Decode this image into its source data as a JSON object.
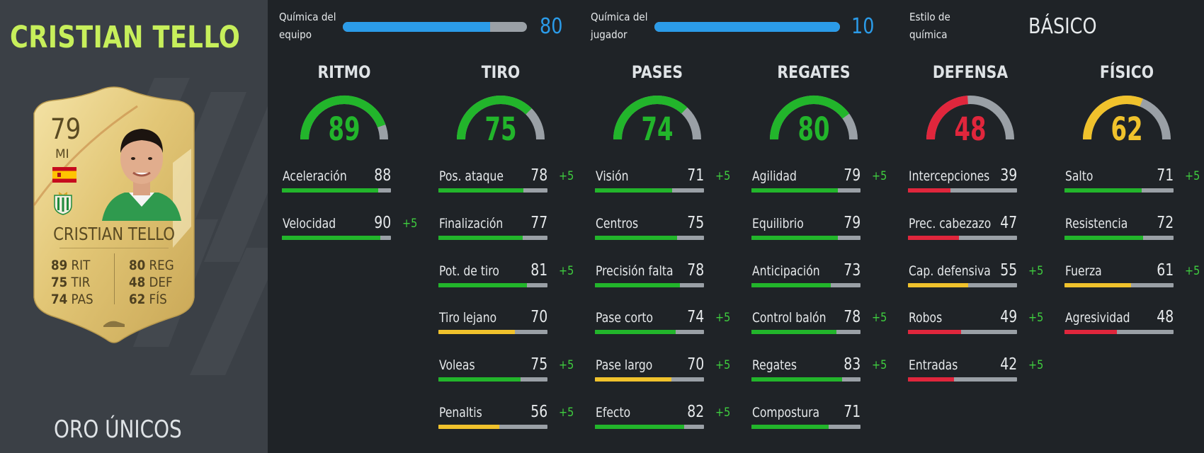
{
  "player": {
    "name": "CRISTIAN TELLO",
    "card_type": "ORO ÚNICOS"
  },
  "card": {
    "rating": "79",
    "position": "MI",
    "name": "CRISTIAN TELLO",
    "stats_left": [
      {
        "value": "89",
        "label": "RIT"
      },
      {
        "value": "75",
        "label": "TIR"
      },
      {
        "value": "74",
        "label": "PAS"
      }
    ],
    "stats_right": [
      {
        "value": "80",
        "label": "REG"
      },
      {
        "value": "48",
        "label": "DEF"
      },
      {
        "value": "62",
        "label": "FÍS"
      }
    ],
    "flag_icon": "spain-flag-icon",
    "club_icon": "real-betis-badge-icon"
  },
  "chemistry": {
    "team": {
      "label_line1": "Química del",
      "label_line2": "equipo",
      "value": "80",
      "level": 0.8
    },
    "player": {
      "label_line1": "Química del",
      "label_line2": "jugador",
      "value": "10",
      "level": 1.0
    },
    "style": {
      "label_line1": "Estilo de",
      "label_line2": "química",
      "value": "BÁSICO"
    }
  },
  "colors": {
    "green": "#22b52b",
    "yellow": "#f0c22c",
    "red": "#e0263c",
    "blue": "#2b9be8",
    "track": "#9aa0a6",
    "title_green": "#c7ef5b"
  },
  "categories": [
    {
      "title": "RITMO",
      "value": "89",
      "color": "#22b52b",
      "attributes": [
        {
          "name": "Aceleración",
          "value": "88",
          "bonus": "",
          "color": "#22b52b"
        },
        {
          "name": "Velocidad",
          "value": "90",
          "bonus": "+5",
          "color": "#22b52b"
        }
      ]
    },
    {
      "title": "TIRO",
      "value": "75",
      "color": "#22b52b",
      "attributes": [
        {
          "name": "Pos. ataque",
          "value": "78",
          "bonus": "+5",
          "color": "#22b52b"
        },
        {
          "name": "Finalización",
          "value": "77",
          "bonus": "",
          "color": "#22b52b"
        },
        {
          "name": "Pot. de tiro",
          "value": "81",
          "bonus": "+5",
          "color": "#22b52b"
        },
        {
          "name": "Tiro lejano",
          "value": "70",
          "bonus": "",
          "color": "#f0c22c"
        },
        {
          "name": "Voleas",
          "value": "75",
          "bonus": "+5",
          "color": "#22b52b"
        },
        {
          "name": "Penaltis",
          "value": "56",
          "bonus": "+5",
          "color": "#f0c22c"
        }
      ]
    },
    {
      "title": "PASES",
      "value": "74",
      "color": "#22b52b",
      "attributes": [
        {
          "name": "Visión",
          "value": "71",
          "bonus": "+5",
          "color": "#22b52b"
        },
        {
          "name": "Centros",
          "value": "75",
          "bonus": "",
          "color": "#22b52b"
        },
        {
          "name": "Precisión falta",
          "value": "78",
          "bonus": "",
          "color": "#22b52b"
        },
        {
          "name": "Pase corto",
          "value": "74",
          "bonus": "+5",
          "color": "#22b52b"
        },
        {
          "name": "Pase largo",
          "value": "70",
          "bonus": "+5",
          "color": "#f0c22c"
        },
        {
          "name": "Efecto",
          "value": "82",
          "bonus": "+5",
          "color": "#22b52b"
        }
      ]
    },
    {
      "title": "REGATES",
      "value": "80",
      "color": "#22b52b",
      "attributes": [
        {
          "name": "Agilidad",
          "value": "79",
          "bonus": "+5",
          "color": "#22b52b"
        },
        {
          "name": "Equilibrio",
          "value": "79",
          "bonus": "",
          "color": "#22b52b"
        },
        {
          "name": "Anticipación",
          "value": "73",
          "bonus": "",
          "color": "#22b52b"
        },
        {
          "name": "Control balón",
          "value": "78",
          "bonus": "+5",
          "color": "#22b52b"
        },
        {
          "name": "Regates",
          "value": "83",
          "bonus": "+5",
          "color": "#22b52b"
        },
        {
          "name": "Compostura",
          "value": "71",
          "bonus": "",
          "color": "#22b52b"
        }
      ]
    },
    {
      "title": "DEFENSA",
      "value": "48",
      "color": "#e0263c",
      "attributes": [
        {
          "name": "Intercepciones",
          "value": "39",
          "bonus": "",
          "color": "#e0263c"
        },
        {
          "name": "Prec. cabezazo",
          "value": "47",
          "bonus": "",
          "color": "#e0263c"
        },
        {
          "name": "Cap. defensiva",
          "value": "55",
          "bonus": "+5",
          "color": "#f0c22c"
        },
        {
          "name": "Robos",
          "value": "49",
          "bonus": "+5",
          "color": "#e0263c"
        },
        {
          "name": "Entradas",
          "value": "42",
          "bonus": "+5",
          "color": "#e0263c"
        }
      ]
    },
    {
      "title": "FÍSICO",
      "value": "62",
      "color": "#f0c22c",
      "attributes": [
        {
          "name": "Salto",
          "value": "71",
          "bonus": "+5",
          "color": "#22b52b"
        },
        {
          "name": "Resistencia",
          "value": "72",
          "bonus": "",
          "color": "#22b52b"
        },
        {
          "name": "Fuerza",
          "value": "61",
          "bonus": "+5",
          "color": "#f0c22c"
        },
        {
          "name": "Agresividad",
          "value": "48",
          "bonus": "",
          "color": "#e0263c"
        }
      ]
    }
  ]
}
